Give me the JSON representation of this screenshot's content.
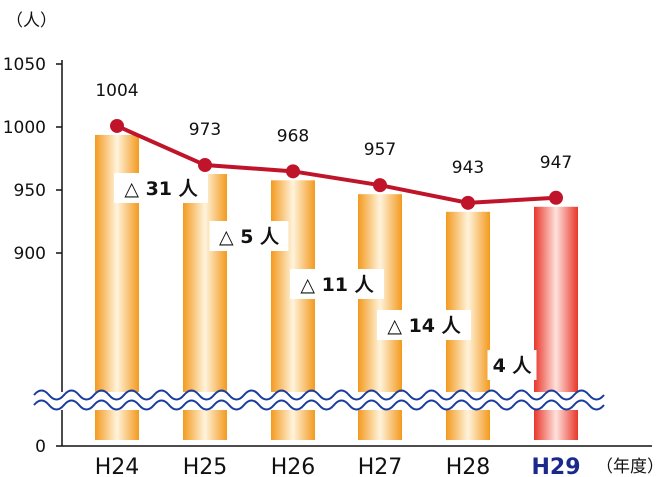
{
  "chart_data": {
    "type": "bar",
    "categories": [
      "H24",
      "H25",
      "H26",
      "H27",
      "H28",
      "H29"
    ],
    "values": [
      1004,
      973,
      968,
      957,
      943,
      947
    ],
    "highlight_category": "H29",
    "y_unit": "（人）",
    "x_unit": "（年度）",
    "yticks": [
      1050,
      1000,
      950,
      900,
      0
    ],
    "ylim": [
      0,
      1050
    ],
    "axis_break": true,
    "changes": [
      "△ 31 人",
      "△ 5 人",
      "△ 11 人",
      "△ 14 人",
      "4 人"
    ],
    "colors": {
      "bar": "#f5a623",
      "bar_highlight": "#e83a2a",
      "line": "#c0142a",
      "wave": "#1a3c9c"
    }
  }
}
